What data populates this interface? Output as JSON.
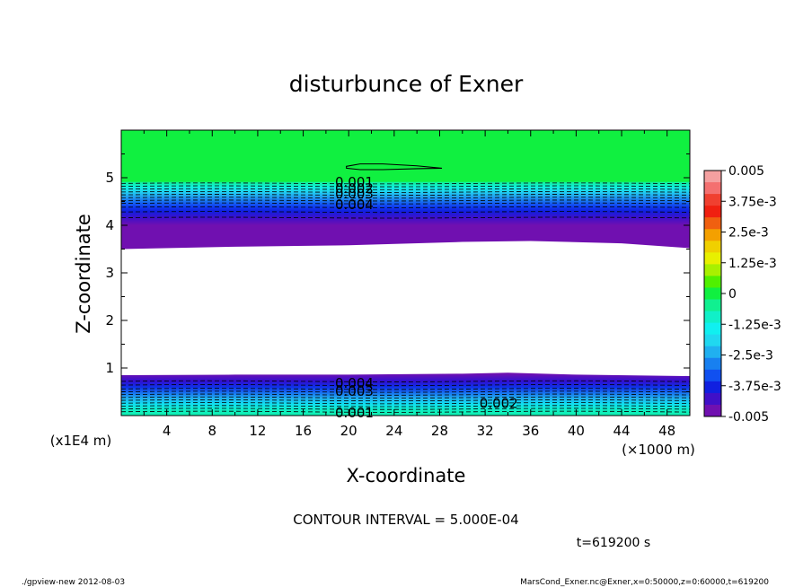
{
  "chart_data": {
    "type": "contour",
    "title": "disturbunce of Exner",
    "xlabel": "X-coordinate",
    "ylabel": "Z-coordinate",
    "x_unit": "(×1000 m)",
    "y_unit": "(x1E4 m)",
    "xlim": [
      0,
      50
    ],
    "ylim": [
      0,
      6
    ],
    "x_ticks": [
      4,
      8,
      12,
      16,
      20,
      24,
      28,
      32,
      36,
      40,
      44,
      48
    ],
    "y_ticks": [
      1,
      2,
      3,
      4,
      5
    ],
    "contour_interval_text": "CONTOUR INTERVAL = 5.000E-04",
    "time_text": "t=619200 s",
    "footer_left": "./gpview-new   2012-08-03",
    "footer_right": "MarsCond_Exner.nc@Exner,x=0:50000,z=0:60000,t=619200",
    "colorbar": {
      "tick_labels": [
        "0.005",
        "3.75e-3",
        "2.5e-3",
        "1.25e-3",
        "0",
        "-1.25e-3",
        "-2.5e-3",
        "-3.75e-3",
        "-0.005"
      ],
      "levels_top_to_bottom": [
        {
          "value": 0.005,
          "color": "#f4a0a0"
        },
        {
          "value": 0.0045,
          "color": "#f47070"
        },
        {
          "value": 0.004,
          "color": "#f04030"
        },
        {
          "value": 0.0035,
          "color": "#f02010"
        },
        {
          "value": 0.003,
          "color": "#f06010"
        },
        {
          "value": 0.0025,
          "color": "#f4a000"
        },
        {
          "value": 0.002,
          "color": "#f0d000"
        },
        {
          "value": 0.0015,
          "color": "#e8f000"
        },
        {
          "value": 0.001,
          "color": "#a8f000"
        },
        {
          "value": 0.0005,
          "color": "#50f000"
        },
        {
          "value": 0.0,
          "color": "#10f040"
        },
        {
          "value": -0.0005,
          "color": "#10f090"
        },
        {
          "value": -0.001,
          "color": "#10f0c8"
        },
        {
          "value": -0.0015,
          "color": "#10f0f0"
        },
        {
          "value": -0.002,
          "color": "#20d8f0"
        },
        {
          "value": -0.0025,
          "color": "#20b0f0"
        },
        {
          "value": -0.003,
          "color": "#1880f0"
        },
        {
          "value": -0.0035,
          "color": "#1050f0"
        },
        {
          "value": -0.004,
          "color": "#1020e0"
        },
        {
          "value": -0.0045,
          "color": "#4010c8"
        },
        {
          "value": -0.005,
          "color": "#7010b0"
        }
      ]
    },
    "bands": {
      "upper": {
        "z_top": 6.0,
        "z_bottom_profile": [
          [
            0,
            3.5
          ],
          [
            10,
            3.55
          ],
          [
            20,
            3.58
          ],
          [
            30,
            3.65
          ],
          [
            36,
            3.67
          ],
          [
            44,
            3.62
          ],
          [
            50,
            3.52
          ]
        ],
        "color_stops_top_to_bottom": [
          {
            "z": 6.0,
            "color": "#10f040"
          },
          {
            "z": 4.92,
            "color": "#10f040"
          },
          {
            "z": 4.9,
            "color": "#10f0a0"
          },
          {
            "z": 4.8,
            "color": "#10f0e0"
          },
          {
            "z": 4.7,
            "color": "#20d0f0"
          },
          {
            "z": 4.6,
            "color": "#20a0f0"
          },
          {
            "z": 4.5,
            "color": "#1870f0"
          },
          {
            "z": 4.4,
            "color": "#1040f0"
          },
          {
            "z": 4.3,
            "color": "#1020e0"
          },
          {
            "z": 4.15,
            "color": "#4010c8"
          },
          {
            "z": 4.0,
            "color": "#7010b0"
          },
          {
            "z": 3.5,
            "color": "#7010b0"
          }
        ]
      },
      "lower": {
        "z_bottom": 0.0,
        "z_top_profile": [
          [
            0,
            0.85
          ],
          [
            10,
            0.86
          ],
          [
            20,
            0.86
          ],
          [
            30,
            0.88
          ],
          [
            34,
            0.9
          ],
          [
            40,
            0.86
          ],
          [
            50,
            0.83
          ]
        ],
        "color_stops_top_to_bottom": [
          {
            "z": 0.88,
            "color": "#7010b0"
          },
          {
            "z": 0.72,
            "color": "#3010d0"
          },
          {
            "z": 0.6,
            "color": "#1030e8"
          },
          {
            "z": 0.48,
            "color": "#1870f0"
          },
          {
            "z": 0.36,
            "color": "#20b0f0"
          },
          {
            "z": 0.24,
            "color": "#10e0f0"
          },
          {
            "z": 0.1,
            "color": "#10f0c0"
          },
          {
            "z": 0.0,
            "color": "#10f0b0"
          }
        ]
      }
    },
    "contour_labels": [
      {
        "text": "0.001",
        "x": 18.8,
        "z": 4.85
      },
      {
        "text": "0.002",
        "x": 18.8,
        "z": 4.72
      },
      {
        "text": "0.003",
        "x": 18.8,
        "z": 4.6
      },
      {
        "text": "0.004",
        "x": 18.8,
        "z": 4.38
      },
      {
        "text": "0.004",
        "x": 18.8,
        "z": 0.62
      },
      {
        "text": "0.003",
        "x": 18.8,
        "z": 0.45
      },
      {
        "text": "0.002",
        "x": 31.5,
        "z": 0.2
      },
      {
        "text": "0.001",
        "x": 18.8,
        "z": 0.0
      }
    ],
    "closed_contour": {
      "points": [
        [
          19.8,
          5.24
        ],
        [
          21,
          5.29
        ],
        [
          23,
          5.29
        ],
        [
          26,
          5.25
        ],
        [
          28.2,
          5.2
        ],
        [
          26,
          5.19
        ],
        [
          23,
          5.17
        ],
        [
          21,
          5.17
        ],
        [
          19.8,
          5.2
        ]
      ]
    }
  }
}
